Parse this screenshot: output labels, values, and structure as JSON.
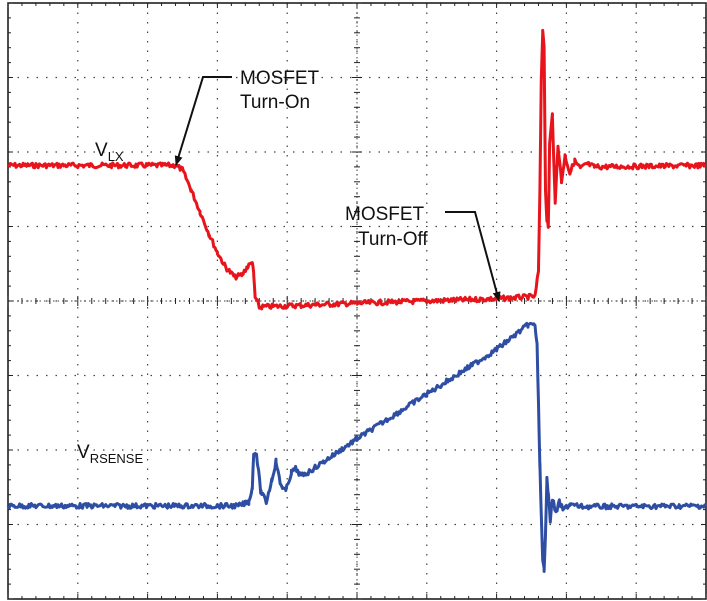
{
  "chart_data": {
    "type": "line",
    "title": "",
    "xlabel": "",
    "ylabel": "",
    "grid": true,
    "grid_divisions": {
      "x": 10,
      "y": 8
    },
    "xlim": [
      0,
      10
    ],
    "ylim": [
      0,
      8
    ],
    "series": [
      {
        "name": "VLX",
        "color": "#e8141b",
        "points": [
          [
            0.0,
            5.82
          ],
          [
            2.4,
            5.82
          ],
          [
            2.5,
            5.76
          ],
          [
            2.62,
            5.5
          ],
          [
            2.75,
            5.2
          ],
          [
            2.88,
            4.9
          ],
          [
            3.0,
            4.65
          ],
          [
            3.12,
            4.45
          ],
          [
            3.25,
            4.32
          ],
          [
            3.35,
            4.35
          ],
          [
            3.42,
            4.45
          ],
          [
            3.5,
            4.52
          ],
          [
            3.52,
            4.35
          ],
          [
            3.54,
            4.05
          ],
          [
            3.6,
            3.92
          ],
          [
            5.0,
            3.97
          ],
          [
            7.0,
            4.03
          ],
          [
            7.55,
            4.06
          ],
          [
            7.6,
            4.4
          ],
          [
            7.62,
            5.5
          ],
          [
            7.64,
            7.0
          ],
          [
            7.66,
            7.6
          ],
          [
            7.68,
            7.4
          ],
          [
            7.7,
            5.5
          ],
          [
            7.72,
            5.1
          ],
          [
            7.74,
            5.0
          ],
          [
            7.76,
            6.1
          ],
          [
            7.8,
            6.5
          ],
          [
            7.84,
            5.3
          ],
          [
            7.88,
            6.1
          ],
          [
            7.93,
            5.6
          ],
          [
            7.98,
            5.95
          ],
          [
            8.05,
            5.72
          ],
          [
            8.12,
            5.88
          ],
          [
            8.2,
            5.78
          ],
          [
            8.3,
            5.84
          ],
          [
            8.4,
            5.8
          ],
          [
            10.0,
            5.82
          ]
        ]
      },
      {
        "name": "VRSENSE",
        "color": "#2e4ea3",
        "points": [
          [
            0.0,
            1.25
          ],
          [
            3.3,
            1.25
          ],
          [
            3.45,
            1.3
          ],
          [
            3.5,
            1.5
          ],
          [
            3.52,
            1.95
          ],
          [
            3.56,
            1.95
          ],
          [
            3.62,
            1.45
          ],
          [
            3.7,
            1.3
          ],
          [
            3.78,
            1.6
          ],
          [
            3.84,
            1.85
          ],
          [
            3.9,
            1.55
          ],
          [
            3.98,
            1.45
          ],
          [
            4.06,
            1.7
          ],
          [
            4.12,
            1.75
          ],
          [
            4.2,
            1.65
          ],
          [
            4.3,
            1.7
          ],
          [
            5.0,
            2.15
          ],
          [
            6.0,
            2.75
          ],
          [
            7.0,
            3.35
          ],
          [
            7.45,
            3.68
          ],
          [
            7.55,
            3.68
          ],
          [
            7.58,
            3.4
          ],
          [
            7.6,
            2.6
          ],
          [
            7.62,
            1.8
          ],
          [
            7.64,
            1.1
          ],
          [
            7.66,
            0.5
          ],
          [
            7.68,
            0.4
          ],
          [
            7.7,
            0.9
          ],
          [
            7.72,
            1.6
          ],
          [
            7.74,
            1.4
          ],
          [
            7.77,
            1.05
          ],
          [
            7.8,
            1.35
          ],
          [
            7.85,
            1.15
          ],
          [
            7.9,
            1.3
          ],
          [
            7.95,
            1.2
          ],
          [
            8.05,
            1.27
          ],
          [
            8.2,
            1.24
          ],
          [
            10.0,
            1.25
          ]
        ]
      }
    ],
    "labels": {
      "vlx_main": "V",
      "vlx_sub": "LX",
      "vrsense_main": "V",
      "vrsense_sub": "RSENSE"
    },
    "annotations": [
      {
        "line1": "MOSFET",
        "line2": "Turn-On",
        "target": [
          2.4,
          5.82
        ]
      },
      {
        "line1": "MOSFET",
        "line2": "Turn-Off",
        "target": [
          7.5,
          4.06
        ]
      }
    ]
  }
}
